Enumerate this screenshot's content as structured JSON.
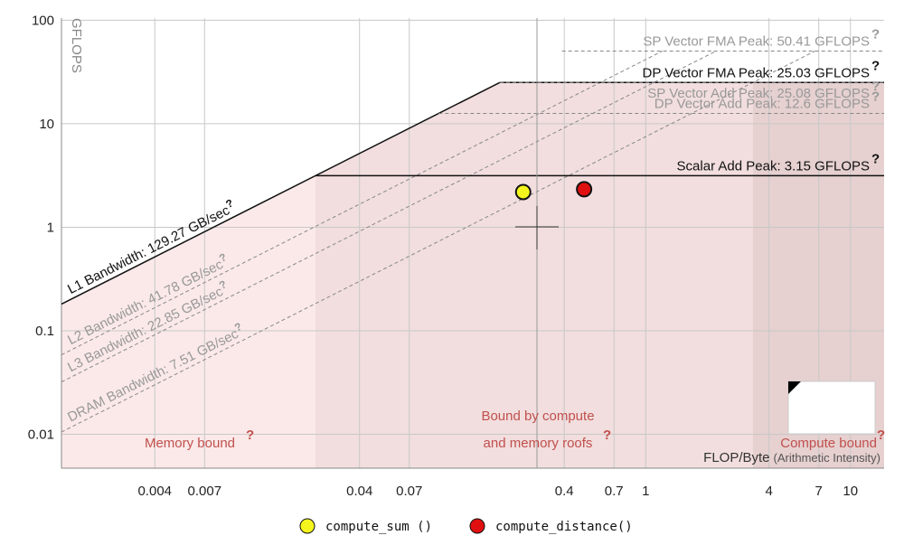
{
  "chart_data": {
    "type": "roofline",
    "x_label": "FLOP/Byte",
    "x_label_note": "(Arithmetic Intensity)",
    "y_label": "GFLOPS",
    "help_mark": "?",
    "xlog": true,
    "ylog": true,
    "xlim": [
      0.0014,
      14.6
    ],
    "ylim": [
      0.0047,
      105
    ],
    "xticks": [
      0.004,
      0.007,
      0.04,
      0.07,
      0.4,
      0.7,
      1,
      4,
      7,
      10
    ],
    "yticks": [
      0.01,
      0.1,
      1,
      10,
      100
    ],
    "regions": [
      "Memory bound",
      "Bound by compute",
      "and memory roofs",
      "Compute bound"
    ],
    "bandwidths": [
      {
        "label": "L1 Bandwidth: 129.27 GB/sec",
        "value": 129.27,
        "style": "solid",
        "color": "#111111"
      },
      {
        "label": "L2 Bandwidth: 41.78 GB/sec",
        "value": 41.78,
        "style": "dashed",
        "color": "#999999"
      },
      {
        "label": "L3 Bandwidth: 22.85 GB/sec",
        "value": 22.85,
        "style": "dashed",
        "color": "#999999"
      },
      {
        "label": "DRAM Bandwidth: 7.51 GB/sec",
        "value": 7.51,
        "style": "dashed",
        "color": "#999999"
      }
    ],
    "peaks": [
      {
        "label": "SP Vector FMA Peak: 50.41 GFLOPS",
        "value": 50.41,
        "style": "dashed",
        "color": "#999999"
      },
      {
        "label": "DP Vector FMA Peak: 25.03 GFLOPS",
        "value": 25.03,
        "style": "solid",
        "color": "#111111"
      },
      {
        "label": "SP Vector Add Peak: 25.08 GFLOPS",
        "value": 25.08,
        "style": "dashed",
        "color": "#999999"
      },
      {
        "label": "DP Vector Add Peak: 12.6 GFLOPS",
        "value": 12.6,
        "style": "dashed",
        "color": "#999999"
      },
      {
        "label": "Scalar Add Peak: 3.15 GFLOPS",
        "value": 3.15,
        "style": "solid",
        "color": "#111111"
      }
    ],
    "series": [
      {
        "name": "compute_sum ()",
        "color": "#f5f51e",
        "x": [
          0.252
        ],
        "values": [
          2.19
        ]
      },
      {
        "name": "compute_distance()",
        "color": "#e01010",
        "x": [
          0.5
        ],
        "values": [
          2.33
        ]
      }
    ]
  }
}
